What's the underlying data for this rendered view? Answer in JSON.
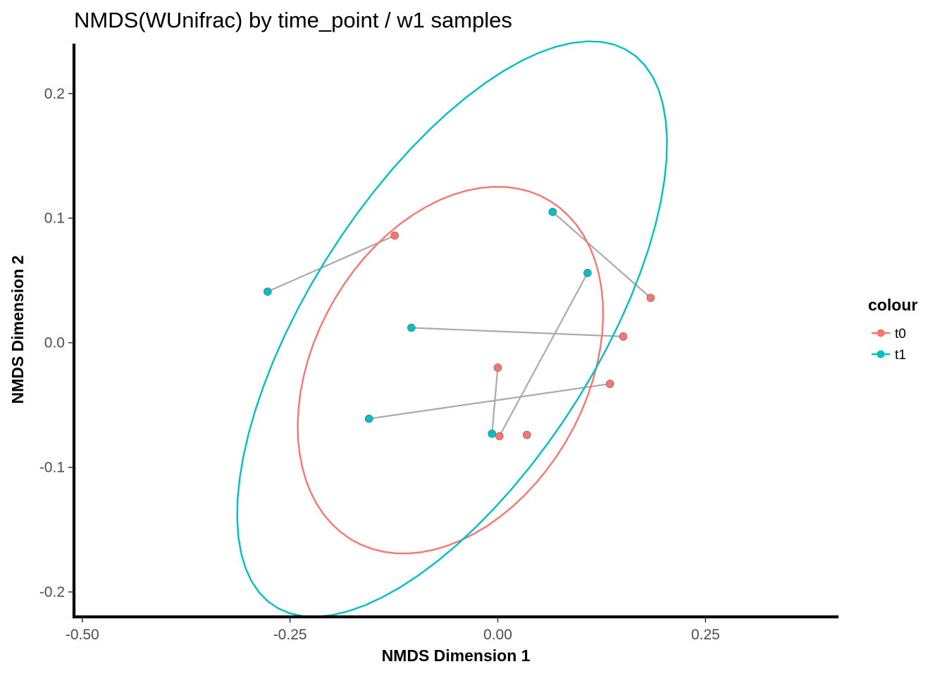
{
  "chart_data": {
    "type": "scatter",
    "title": "NMDS(WUnifrac) by time_point / w1 samples",
    "xlabel": "NMDS Dimension 1",
    "ylabel": "NMDS Dimension 2",
    "xlim": [
      -0.51,
      0.41
    ],
    "ylim": [
      -0.22,
      0.24
    ],
    "xticks": [
      -0.5,
      -0.25,
      0.0,
      0.25
    ],
    "xtick_labels": [
      "-0.50",
      "-0.25",
      "0.00",
      "0.25"
    ],
    "yticks": [
      -0.2,
      -0.1,
      0.0,
      0.1,
      0.2
    ],
    "ytick_labels": [
      "-0.2",
      "-0.1",
      "0.0",
      "0.1",
      "0.2"
    ],
    "grid": false,
    "legend": {
      "title": "colour",
      "position": "right",
      "entries": [
        {
          "label": "t0",
          "color": "#F8766D"
        },
        {
          "label": "t1",
          "color": "#00BFC4"
        }
      ]
    },
    "series": [
      {
        "name": "t0",
        "color": "#F8766D",
        "points": [
          {
            "x": -0.124,
            "y": 0.086
          },
          {
            "x": 0.184,
            "y": 0.036
          },
          {
            "x": 0.151,
            "y": 0.005
          },
          {
            "x": 0.0,
            "y": -0.02
          },
          {
            "x": 0.135,
            "y": -0.033
          },
          {
            "x": 0.002,
            "y": -0.075
          },
          {
            "x": 0.035,
            "y": -0.074
          }
        ],
        "ellipse": {
          "center": [
            -0.057,
            -0.022
          ],
          "semi_axes": [
            0.195,
            0.132
          ],
          "rotation_deg": 27
        }
      },
      {
        "name": "t1",
        "color": "#00BFC4",
        "points": [
          {
            "x": -0.277,
            "y": 0.041
          },
          {
            "x": 0.066,
            "y": 0.105
          },
          {
            "x": 0.108,
            "y": 0.056
          },
          {
            "x": -0.104,
            "y": 0.012
          },
          {
            "x": -0.155,
            "y": -0.061
          },
          {
            "x": -0.007,
            "y": -0.073
          }
        ],
        "ellipse": {
          "center": [
            -0.055,
            0.011
          ],
          "semi_axes": [
            0.315,
            0.145
          ],
          "rotation_deg": 40
        }
      }
    ],
    "pair_lines": {
      "color": "#AAAAAA",
      "segments": [
        [
          [
            -0.277,
            0.041
          ],
          [
            -0.124,
            0.086
          ]
        ],
        [
          [
            0.066,
            0.105
          ],
          [
            0.184,
            0.036
          ]
        ],
        [
          [
            -0.104,
            0.012
          ],
          [
            0.151,
            0.005
          ]
        ],
        [
          [
            0.108,
            0.056
          ],
          [
            0.002,
            -0.075
          ]
        ],
        [
          [
            0.0,
            -0.02
          ],
          [
            -0.007,
            -0.073
          ]
        ],
        [
          [
            -0.155,
            -0.061
          ],
          [
            0.135,
            -0.033
          ]
        ]
      ]
    }
  }
}
